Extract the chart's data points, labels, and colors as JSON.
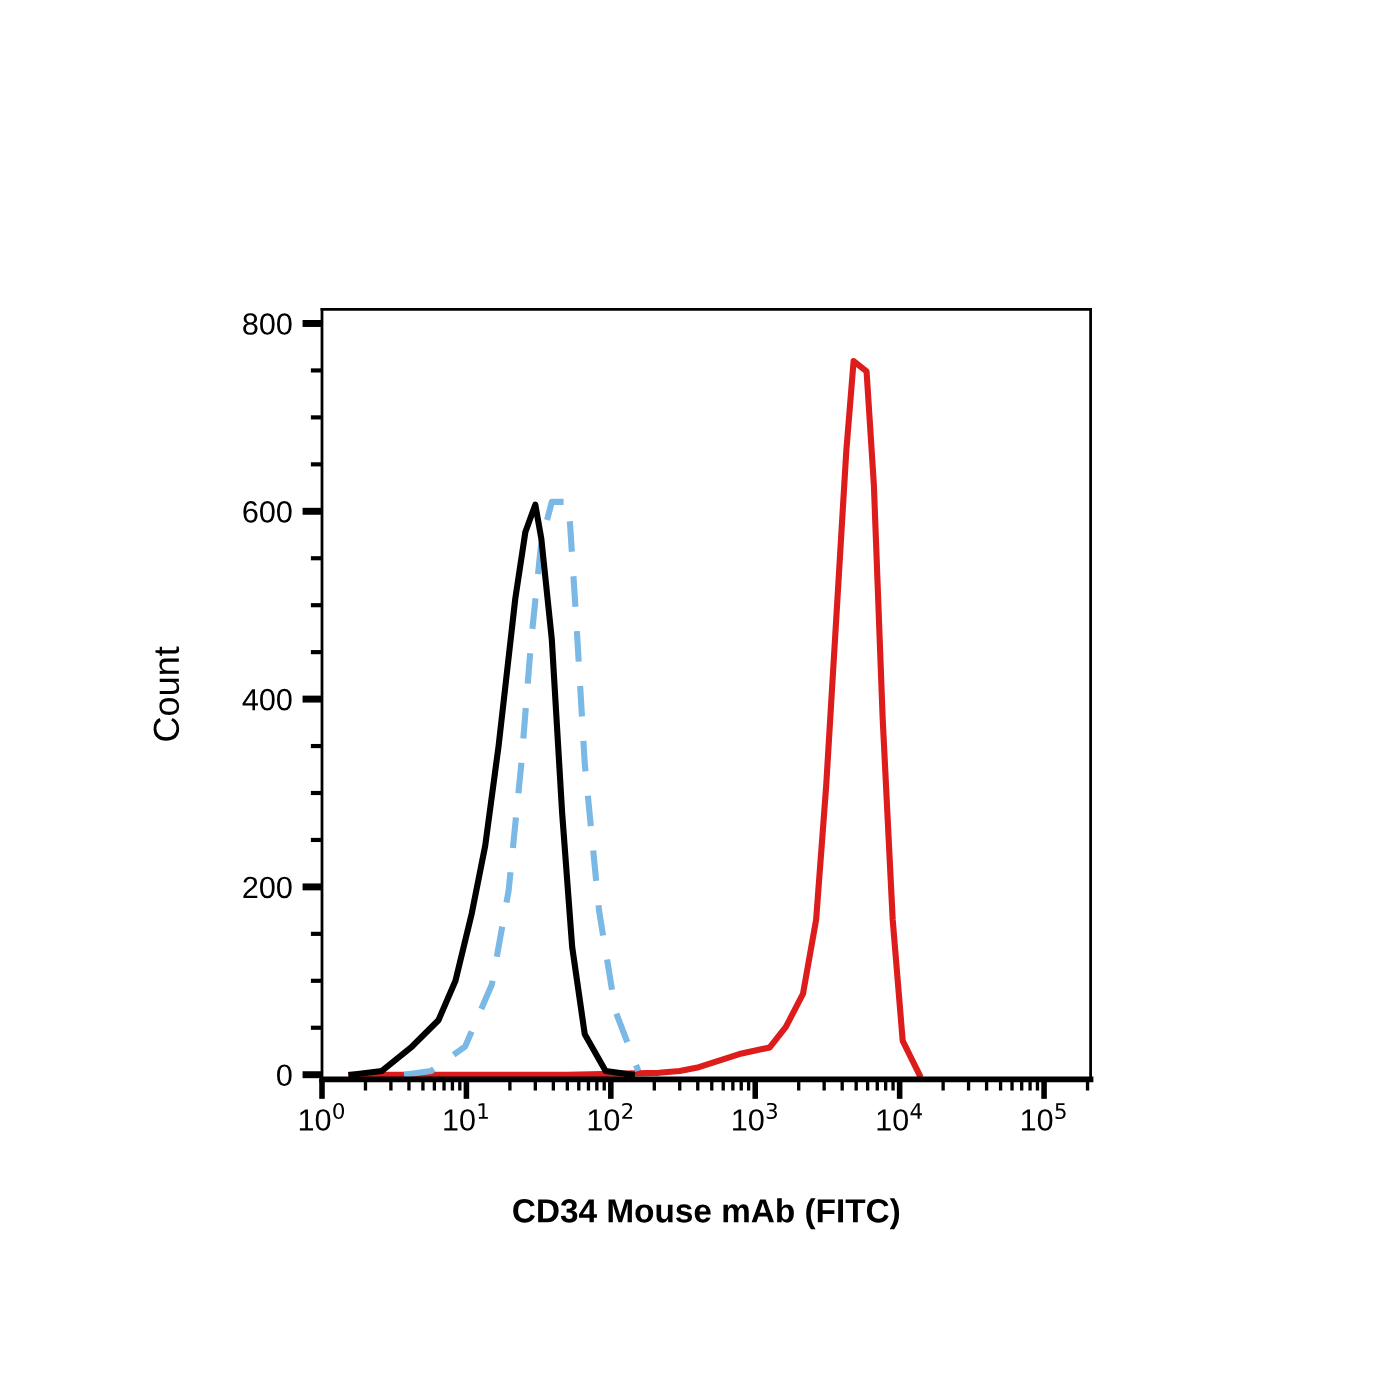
{
  "chart_data": {
    "type": "line",
    "xlabel": "CD34 Mouse mAb (FITC)",
    "ylabel": "Count",
    "log": "x",
    "grid": false,
    "legend": false,
    "marker": "none",
    "xlim": [
      1,
      210000
    ],
    "ylim": [
      -5,
      815
    ],
    "xticks": [
      {
        "value": 1,
        "label": "10$^{0}$"
      },
      {
        "value": 10,
        "label": "10$^{1}$"
      },
      {
        "value": 100,
        "label": "10$^{2}$"
      },
      {
        "value": 1000,
        "label": "10$^{3}$"
      },
      {
        "value": 10000,
        "label": "10$^{4}$"
      },
      {
        "value": 100000,
        "label": "10$^{5}$"
      }
    ],
    "yticks": [
      0,
      {
        "value": 50,
        "label": null
      },
      {
        "value": 100,
        "label": null
      },
      {
        "value": 150,
        "label": null
      },
      200,
      {
        "value": 250,
        "label": null
      },
      {
        "value": 300,
        "label": null
      },
      {
        "value": 350,
        "label": null
      },
      400,
      {
        "value": 450,
        "label": null
      },
      {
        "value": 500,
        "label": null
      },
      {
        "value": 550,
        "label": null
      },
      600,
      {
        "value": 650,
        "label": null
      },
      {
        "value": 700,
        "label": null
      },
      {
        "value": 750,
        "label": null
      },
      800
    ],
    "series": [
      {
        "color": "#dd1c1c",
        "line_style": "solid",
        "x": [
          1.6,
          50,
          215,
          300,
          407,
          776,
          1260,
          1630,
          2140,
          2640,
          3100,
          3640,
          4270,
          4800,
          5900,
          6630,
          7630,
          8950,
          10500,
          13700
        ],
        "values": [
          0,
          0,
          2,
          4,
          8,
          22,
          29,
          51,
          86,
          165,
          308,
          486,
          664,
          760,
          749,
          628,
          379,
          165,
          36,
          0
        ]
      },
      {
        "color": "#7ab8e6",
        "line_style": "dashed",
        "x": [
          3.7,
          5.7,
          9.8,
          15,
          19.6,
          24,
          28,
          33,
          39,
          51,
          57,
          66,
          83,
          108,
          155
        ],
        "values": [
          0,
          4,
          30,
          96,
          196,
          331,
          460,
          567,
          610,
          610,
          496,
          331,
          174,
          67,
          4
        ]
      },
      {
        "color": "#000000",
        "line_style": "solid",
        "x": [
          1.6,
          2.6,
          4.2,
          6.4,
          8.4,
          10.9,
          13.5,
          16.7,
          21.8,
          25.6,
          30,
          33,
          39,
          46,
          54,
          66,
          92,
          140
        ],
        "values": [
          0,
          4,
          30,
          58,
          100,
          172,
          244,
          350,
          507,
          578,
          607,
          571,
          464,
          279,
          136,
          43,
          4,
          0
        ]
      }
    ]
  }
}
